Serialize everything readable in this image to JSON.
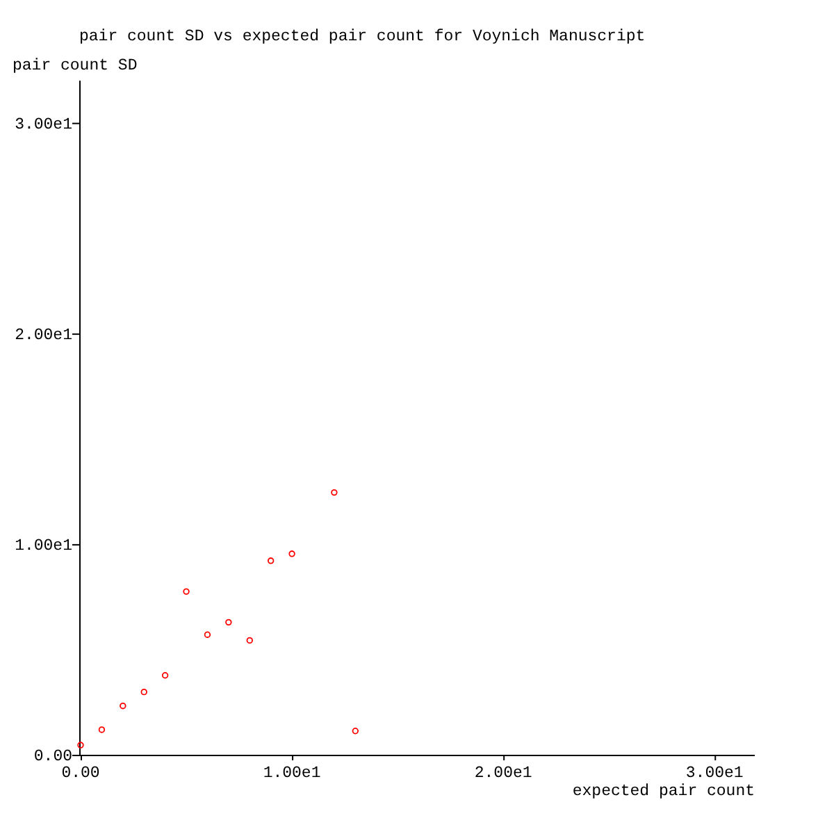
{
  "chart_data": {
    "type": "scatter",
    "title": "pair count SD vs expected pair count for Voynich Manuscript",
    "xlabel": "expected pair count",
    "ylabel": "pair count SD",
    "x": [
      0,
      1,
      2,
      3,
      4,
      5,
      6,
      7,
      8,
      9,
      10,
      12,
      13
    ],
    "values": [
      0.46,
      1.19,
      2.32,
      2.98,
      3.77,
      7.75,
      5.7,
      6.29,
      5.43,
      9.21,
      9.54,
      12.45,
      1.13
    ],
    "color": "#ff0000",
    "marker": "circle",
    "xlim": [
      0,
      31.9
    ],
    "ylim": [
      0,
      32
    ],
    "xticks": [
      {
        "value": 0,
        "label": "0.00"
      },
      {
        "value": 10,
        "label": "1.00e1"
      },
      {
        "value": 20,
        "label": "2.00e1"
      },
      {
        "value": 30,
        "label": "3.00e1"
      }
    ],
    "yticks": [
      {
        "value": 0,
        "label": "0.00"
      },
      {
        "value": 10,
        "label": "1.00e1"
      },
      {
        "value": 20,
        "label": "2.00e1"
      },
      {
        "value": 30,
        "label": "3.00e1"
      }
    ],
    "grid": false
  }
}
